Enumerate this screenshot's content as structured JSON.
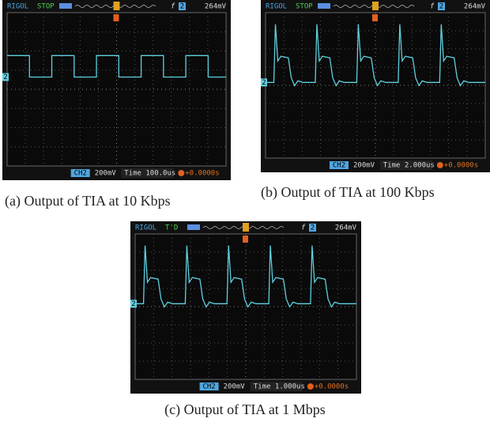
{
  "figures": [
    {
      "screen": {
        "brand": "RIGOL",
        "status": "STOP",
        "trigger_slope": "f",
        "trigger_source": "2",
        "trigger_level": "264mV",
        "channel_marker": "2",
        "channel": "CH2",
        "volts_div": "200mV",
        "time_div": "Time 100.0us",
        "trigger_offset": "+0.0000s"
      },
      "caption": "(a) Output of TIA at 10 Kbps"
    },
    {
      "screen": {
        "brand": "RIGOL",
        "status": "STOP",
        "trigger_slope": "f",
        "trigger_source": "2",
        "trigger_level": "264mV",
        "channel_marker": "2",
        "channel": "CH2",
        "volts_div": "200mV",
        "time_div": "Time 2.000us",
        "trigger_offset": "+0.0000s"
      },
      "caption": "(b) Output of TIA at 100 Kbps"
    },
    {
      "screen": {
        "brand": "RIGOL",
        "status": "T'D",
        "trigger_slope": "f",
        "trigger_source": "2",
        "trigger_level": "264mV",
        "channel_marker": "2",
        "channel": "CH2",
        "volts_div": "200mV",
        "time_div": "Time 1.000us",
        "trigger_offset": "+0.0000s"
      },
      "caption": "(c) Output of TIA at 1 Mbps"
    }
  ]
}
